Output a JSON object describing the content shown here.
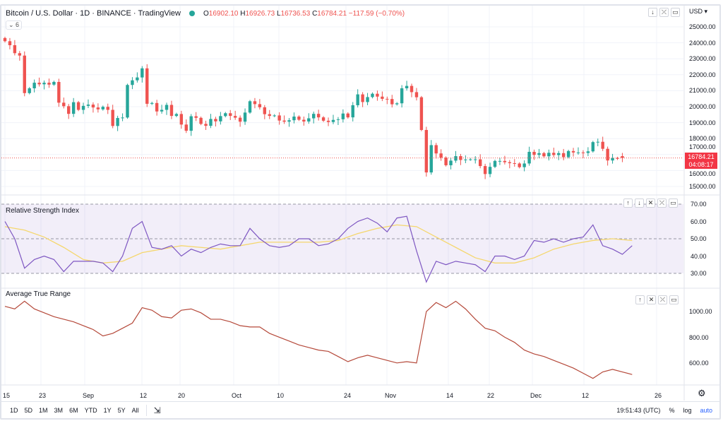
{
  "header": {
    "title": "Bitcoin / U.S. Dollar · 1D · BINANCE · TradingView",
    "open": "16902.10",
    "high": "16926.73",
    "low": "16736.53",
    "close": "16784.21",
    "change": "−117.59 (−0.70%)",
    "o": "O",
    "h": "H",
    "l": "L",
    "c": "C",
    "collapse": "⌄ 6"
  },
  "price_axis": {
    "currency": "USD ▾",
    "ticks": [
      "25000.00",
      "24000.00",
      "23000.00",
      "22000.00",
      "21000.00",
      "20000.00",
      "19000.00",
      "18000.00",
      "17000.00",
      "16000.00",
      "15000.00"
    ],
    "last_price": "16784.21",
    "countdown": "04:08:17"
  },
  "rsi": {
    "title": "Relative Strength Index",
    "ticks": [
      "70.00",
      "60.00",
      "50.00",
      "40.00",
      "30.00"
    ]
  },
  "atr": {
    "title": "Average True Range",
    "ticks": [
      "1000.00",
      "800.00",
      "600.00"
    ]
  },
  "time_axis": [
    "15",
    "23",
    "Sep",
    "12",
    "20",
    "Oct",
    "10",
    "24",
    "Nov",
    "14",
    "22",
    "Dec",
    "12",
    "26"
  ],
  "toolbar": {
    "ranges": [
      "1D",
      "5D",
      "1M",
      "3M",
      "6M",
      "YTD",
      "1Y",
      "5Y",
      "All"
    ],
    "clock": "19:51:43 (UTC)",
    "percent": "%",
    "log": "log",
    "auto": "auto"
  },
  "colors": {
    "up": "#26a69a",
    "down": "#ef5350",
    "rsi": "#7e57c2",
    "rsi_ma": "#f5d76e",
    "atr": "#b5493a",
    "rsi_band": "#7e57c2"
  },
  "chart_data": [
    {
      "type": "candlestick",
      "start_date": "Aug 15",
      "interval": "1D",
      "open_last": 16902.1,
      "closes": [
        24100,
        23850,
        23350,
        23200,
        20850,
        21150,
        21500,
        21400,
        21500,
        21380,
        21550,
        20250,
        20030,
        19550,
        20280,
        19800,
        20050,
        20130,
        19950,
        19830,
        19990,
        19800,
        18790,
        19290,
        19320,
        21360,
        21650,
        21830,
        22400,
        20180,
        20230,
        19700,
        19800,
        20110,
        19420,
        19540,
        18880,
        18490,
        19400,
        19300,
        18920,
        18800,
        19230,
        19080,
        19410,
        19590,
        19420,
        19310,
        19060,
        19630,
        20340,
        20160,
        19960,
        19530,
        19420,
        19450,
        19130,
        19060,
        19150,
        19380,
        19180,
        19070,
        19270,
        19550,
        19330,
        19120,
        19040,
        19170,
        19210,
        19570,
        19330,
        20090,
        20770,
        20290,
        20600,
        20810,
        20630,
        20490,
        20480,
        20150,
        20210,
        21150,
        21300,
        20910,
        20590,
        18540,
        15880,
        17590,
        17070,
        16810,
        16330,
        16620,
        16900,
        16660,
        16690,
        16700,
        16700,
        16280,
        15780,
        16230,
        16600,
        16600,
        16520,
        16460,
        16440,
        16210,
        16440,
        17170,
        16980,
        17090,
        16890,
        17110,
        16970,
        17090,
        16840,
        17220,
        17130,
        17130,
        17100,
        17200,
        17780,
        17800,
        17360,
        16630,
        16780,
        16740,
        16784.21
      ],
      "ylim": [
        14500,
        25500
      ]
    },
    {
      "type": "line",
      "name": "Relative Strength Index",
      "sample_every_days": 2,
      "values": [
        60,
        50,
        33,
        38,
        40,
        38,
        31,
        37,
        37,
        37,
        36,
        31,
        40,
        56,
        60,
        45,
        44,
        46,
        40,
        44,
        42,
        45,
        47,
        46,
        46,
        56,
        50,
        46,
        45,
        46,
        50,
        50,
        46,
        47,
        50,
        56,
        60,
        62,
        59,
        54,
        62,
        63,
        43,
        25,
        37,
        35,
        37,
        36,
        35,
        31,
        40,
        40,
        38,
        40,
        49,
        48,
        50,
        48,
        50,
        51,
        58,
        46,
        44,
        41,
        46
      ],
      "ma_sample_every_days": 4,
      "ma_values": [
        57,
        55,
        51,
        45,
        38,
        36,
        37,
        42,
        44,
        46,
        45,
        44,
        46,
        48,
        48,
        48,
        48,
        49,
        53,
        56,
        58,
        57,
        51,
        45,
        39,
        36,
        36,
        39,
        44,
        47,
        49,
        50,
        49
      ],
      "bands": [
        70,
        50,
        30
      ],
      "ylim": [
        25,
        72
      ]
    },
    {
      "type": "line",
      "name": "Average True Range",
      "sample_every_days": 2,
      "values": [
        1040,
        1020,
        1080,
        1020,
        990,
        960,
        940,
        920,
        890,
        860,
        810,
        830,
        870,
        910,
        1030,
        1010,
        960,
        950,
        1010,
        1020,
        990,
        940,
        940,
        920,
        890,
        880,
        880,
        830,
        800,
        770,
        740,
        720,
        700,
        690,
        650,
        610,
        640,
        660,
        640,
        620,
        600,
        610,
        600,
        1000,
        1070,
        1030,
        1080,
        1020,
        940,
        870,
        850,
        800,
        760,
        700,
        670,
        650,
        620,
        590,
        560,
        520,
        480,
        530,
        550,
        530,
        510
      ],
      "ylim": [
        450,
        1120
      ]
    }
  ]
}
